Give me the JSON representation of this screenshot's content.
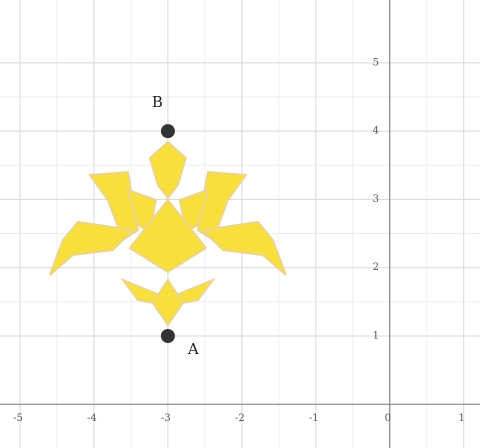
{
  "chart_data": {
    "type": "scatter",
    "x": [
      -3,
      -3
    ],
    "values": [
      1,
      4
    ],
    "point_labels": [
      "A",
      "B"
    ],
    "color": "#333333",
    "xlim": [
      -5.27,
      1.22
    ],
    "ylim": [
      -0.64,
      5.92
    ],
    "xticks": [
      -5,
      -4,
      -3,
      -2,
      -1,
      0,
      1
    ],
    "yticks": [
      1,
      2,
      3,
      4,
      5
    ],
    "grid": true
  }
}
